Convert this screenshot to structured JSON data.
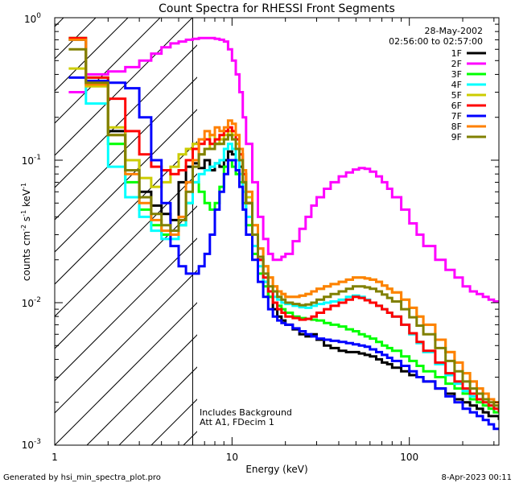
{
  "chart_data": {
    "type": "line",
    "title": "Count Spectra for RHESSI Front Segments",
    "xlabel": "Energy (keV)",
    "ylabel": "counts cm-2 s-1 keV-1",
    "ylabel_parts": {
      "base": "counts cm",
      "exp1": "-2",
      "mid": " s",
      "exp2": "-1",
      "mid2": " keV",
      "exp3": "-1"
    },
    "xscale": "log",
    "yscale": "log",
    "xlim": [
      1,
      320
    ],
    "ylim": [
      0.001,
      1
    ],
    "x_tick_labels": [
      "1",
      "10",
      "100"
    ],
    "y_tick_labels": [
      {
        "base": "10",
        "exp": "0",
        "value": 1
      },
      {
        "base": "10",
        "exp": "-1",
        "value": 0.1
      },
      {
        "base": "10",
        "exp": "-2",
        "value": 0.01
      },
      {
        "base": "10",
        "exp": "-3",
        "value": 0.001
      }
    ],
    "date": "28-May-2002",
    "time_range": "02:56:00 to 02:57:00",
    "hatched_region_kev": [
      1,
      6
    ],
    "annotations": [
      "Includes Background",
      "Att A1, FDecim 1"
    ],
    "legend_position": "top-right",
    "series": [
      {
        "name": "1F",
        "color": "#000000",
        "x": [
          1.2,
          1.5,
          2,
          2.5,
          3,
          3.5,
          4,
          4.5,
          5,
          5.5,
          6,
          6.5,
          7,
          7.5,
          8,
          8.5,
          9,
          9.5,
          10,
          10.5,
          11,
          11.5,
          12,
          13,
          14,
          15,
          16,
          17,
          18,
          19,
          20,
          22,
          24,
          26,
          28,
          30,
          33,
          36,
          40,
          44,
          48,
          52,
          56,
          60,
          65,
          70,
          75,
          80,
          90,
          100,
          110,
          120,
          140,
          160,
          180,
          200,
          220,
          240,
          260,
          280,
          300,
          320
        ],
        "y": [
          0.7,
          0.36,
          0.16,
          0.1,
          0.06,
          0.048,
          0.042,
          0.038,
          0.07,
          0.09,
          0.095,
          0.088,
          0.1,
          0.085,
          0.095,
          0.09,
          0.1,
          0.115,
          0.11,
          0.1,
          0.09,
          0.07,
          0.05,
          0.03,
          0.02,
          0.014,
          0.011,
          0.009,
          0.008,
          0.0075,
          0.007,
          0.0065,
          0.006,
          0.0058,
          0.006,
          0.0055,
          0.005,
          0.0048,
          0.0046,
          0.0045,
          0.0045,
          0.0044,
          0.0043,
          0.0042,
          0.004,
          0.0038,
          0.0037,
          0.0035,
          0.0033,
          0.0031,
          0.003,
          0.0028,
          0.0025,
          0.0023,
          0.0021,
          0.002,
          0.0019,
          0.0018,
          0.0017,
          0.0016,
          0.0016,
          0.0015
        ]
      },
      {
        "name": "2F",
        "color": "#ff00ff",
        "x": [
          1.2,
          1.5,
          2,
          2.5,
          3,
          3.5,
          4,
          4.5,
          5,
          5.5,
          6,
          6.5,
          7,
          7.5,
          8,
          8.5,
          9,
          9.5,
          10,
          10.5,
          11,
          11.5,
          12,
          13,
          14,
          15,
          16,
          17,
          18,
          19,
          20,
          22,
          24,
          26,
          28,
          30,
          33,
          36,
          40,
          44,
          48,
          52,
          56,
          60,
          65,
          70,
          75,
          80,
          90,
          100,
          110,
          120,
          140,
          160,
          180,
          200,
          220,
          240,
          260,
          280,
          300,
          320
        ],
        "y": [
          0.3,
          0.4,
          0.42,
          0.45,
          0.5,
          0.56,
          0.62,
          0.66,
          0.68,
          0.7,
          0.71,
          0.72,
          0.72,
          0.72,
          0.71,
          0.7,
          0.68,
          0.6,
          0.5,
          0.4,
          0.3,
          0.2,
          0.13,
          0.07,
          0.04,
          0.028,
          0.022,
          0.02,
          0.02,
          0.021,
          0.022,
          0.027,
          0.033,
          0.04,
          0.048,
          0.055,
          0.063,
          0.07,
          0.077,
          0.082,
          0.086,
          0.088,
          0.087,
          0.083,
          0.077,
          0.07,
          0.063,
          0.055,
          0.045,
          0.036,
          0.03,
          0.025,
          0.02,
          0.017,
          0.015,
          0.013,
          0.012,
          0.0115,
          0.011,
          0.0105,
          0.0102,
          0.01
        ]
      },
      {
        "name": "3F",
        "color": "#00ff00",
        "x": [
          1.2,
          1.5,
          2,
          2.5,
          3,
          3.5,
          4,
          4.5,
          5,
          5.5,
          6,
          6.5,
          7,
          7.5,
          8,
          8.5,
          9,
          9.5,
          10,
          10.5,
          11,
          11.5,
          12,
          13,
          14,
          15,
          16,
          17,
          18,
          19,
          20,
          22,
          24,
          26,
          28,
          30,
          33,
          36,
          40,
          44,
          48,
          52,
          56,
          60,
          65,
          70,
          75,
          80,
          90,
          100,
          110,
          120,
          140,
          160,
          180,
          200,
          220,
          240,
          260,
          280,
          300,
          320
        ],
        "y": [
          0.72,
          0.38,
          0.13,
          0.07,
          0.045,
          0.035,
          0.03,
          0.03,
          0.035,
          0.05,
          0.07,
          0.06,
          0.05,
          0.045,
          0.05,
          0.065,
          0.09,
          0.1,
          0.09,
          0.08,
          0.07,
          0.05,
          0.035,
          0.022,
          0.016,
          0.013,
          0.011,
          0.01,
          0.0095,
          0.009,
          0.0085,
          0.008,
          0.0078,
          0.0077,
          0.0076,
          0.0075,
          0.0072,
          0.007,
          0.0068,
          0.0065,
          0.0063,
          0.006,
          0.0058,
          0.0056,
          0.0053,
          0.005,
          0.0048,
          0.0046,
          0.0042,
          0.0039,
          0.0036,
          0.0033,
          0.003,
          0.0027,
          0.0025,
          0.0023,
          0.0021,
          0.002,
          0.0019,
          0.0018,
          0.0017,
          0.0017
        ]
      },
      {
        "name": "4F",
        "color": "#00ffff",
        "x": [
          1.2,
          1.5,
          2,
          2.5,
          3,
          3.5,
          4,
          4.5,
          5,
          5.5,
          6,
          6.5,
          7,
          7.5,
          8,
          8.5,
          9,
          9.5,
          10,
          10.5,
          11,
          11.5,
          12,
          13,
          14,
          15,
          16,
          17,
          18,
          19,
          20,
          22,
          24,
          26,
          28,
          30,
          33,
          36,
          40,
          44,
          48,
          52,
          56,
          60,
          65,
          70,
          75,
          80,
          90,
          100,
          110,
          120,
          140,
          160,
          180,
          200,
          220,
          240,
          260,
          280,
          300,
          320
        ],
        "y": [
          0.7,
          0.25,
          0.09,
          0.055,
          0.04,
          0.032,
          0.028,
          0.028,
          0.035,
          0.05,
          0.07,
          0.08,
          0.085,
          0.09,
          0.095,
          0.1,
          0.12,
          0.13,
          0.12,
          0.1,
          0.08,
          0.06,
          0.04,
          0.025,
          0.018,
          0.014,
          0.012,
          0.011,
          0.0105,
          0.01,
          0.0098,
          0.0095,
          0.0093,
          0.0092,
          0.0095,
          0.0098,
          0.01,
          0.0102,
          0.0105,
          0.011,
          0.0112,
          0.011,
          0.0105,
          0.01,
          0.0095,
          0.009,
          0.0085,
          0.008,
          0.007,
          0.006,
          0.0052,
          0.0045,
          0.0037,
          0.0031,
          0.0027,
          0.0024,
          0.0022,
          0.0021,
          0.002,
          0.0019,
          0.0018,
          0.0017
        ]
      },
      {
        "name": "5F",
        "color": "#cccc00",
        "x": [
          1.2,
          1.5,
          2,
          2.5,
          3,
          3.5,
          4,
          4.5,
          5,
          5.5,
          6,
          6.5,
          7,
          7.5,
          8,
          8.5,
          9,
          9.5,
          10,
          10.5,
          11,
          11.5,
          12,
          13,
          14,
          15,
          16,
          17,
          18,
          19,
          20,
          22,
          24,
          26,
          28,
          30,
          33,
          36,
          40,
          44,
          48,
          52,
          56,
          60,
          65,
          70,
          75,
          80,
          90,
          100,
          110,
          120,
          140,
          160,
          180,
          200,
          220,
          240,
          260,
          280,
          300,
          320
        ],
        "y": [
          0.44,
          0.33,
          0.17,
          0.1,
          0.075,
          0.065,
          0.07,
          0.09,
          0.11,
          0.12,
          0.13,
          0.11,
          0.12,
          0.15,
          0.13,
          0.14,
          0.15,
          0.16,
          0.15,
          0.13,
          0.11,
          0.08,
          0.055,
          0.035,
          0.024,
          0.018,
          0.015,
          0.013,
          0.012,
          0.0115,
          0.011,
          0.011,
          0.0112,
          0.0115,
          0.012,
          0.0125,
          0.013,
          0.0135,
          0.014,
          0.0145,
          0.015,
          0.015,
          0.0148,
          0.0145,
          0.014,
          0.0132,
          0.0125,
          0.0118,
          0.0105,
          0.0092,
          0.008,
          0.007,
          0.0055,
          0.0045,
          0.0038,
          0.0032,
          0.0028,
          0.0025,
          0.0023,
          0.0021,
          0.002,
          0.0019
        ]
      },
      {
        "name": "6F",
        "color": "#ff0000",
        "x": [
          1.2,
          1.5,
          2,
          2.5,
          3,
          3.5,
          4,
          4.5,
          5,
          5.5,
          6,
          6.5,
          7,
          7.5,
          8,
          8.5,
          9,
          9.5,
          10,
          10.5,
          11,
          11.5,
          12,
          13,
          14,
          15,
          16,
          17,
          18,
          19,
          20,
          22,
          24,
          26,
          28,
          30,
          33,
          36,
          40,
          44,
          48,
          52,
          56,
          60,
          65,
          70,
          75,
          80,
          90,
          100,
          110,
          120,
          140,
          160,
          180,
          200,
          220,
          240,
          260,
          280,
          300,
          320
        ],
        "y": [
          0.72,
          0.38,
          0.27,
          0.16,
          0.11,
          0.09,
          0.085,
          0.08,
          0.085,
          0.1,
          0.12,
          0.13,
          0.14,
          0.13,
          0.14,
          0.15,
          0.16,
          0.17,
          0.16,
          0.14,
          0.11,
          0.08,
          0.05,
          0.03,
          0.02,
          0.015,
          0.012,
          0.01,
          0.009,
          0.0085,
          0.008,
          0.0078,
          0.0076,
          0.0077,
          0.008,
          0.0085,
          0.009,
          0.0095,
          0.01,
          0.0105,
          0.011,
          0.0108,
          0.0104,
          0.01,
          0.0095,
          0.009,
          0.0085,
          0.008,
          0.007,
          0.0061,
          0.0053,
          0.0046,
          0.0038,
          0.0032,
          0.0028,
          0.0025,
          0.0023,
          0.0021,
          0.002,
          0.0019,
          0.0018,
          0.0017
        ]
      },
      {
        "name": "7F",
        "color": "#0000ff",
        "x": [
          1.2,
          1.5,
          2,
          2.5,
          3,
          3.5,
          4,
          4.5,
          5,
          5.5,
          6,
          6.5,
          7,
          7.5,
          8,
          8.5,
          9,
          9.5,
          10,
          10.5,
          11,
          11.5,
          12,
          13,
          14,
          15,
          16,
          17,
          18,
          19,
          20,
          22,
          24,
          26,
          28,
          30,
          33,
          36,
          40,
          44,
          48,
          52,
          56,
          60,
          65,
          70,
          75,
          80,
          90,
          100,
          110,
          120,
          140,
          160,
          180,
          200,
          220,
          240,
          260,
          280,
          300,
          320
        ],
        "y": [
          0.38,
          0.36,
          0.35,
          0.32,
          0.2,
          0.1,
          0.05,
          0.025,
          0.018,
          0.016,
          0.016,
          0.018,
          0.022,
          0.03,
          0.045,
          0.06,
          0.08,
          0.1,
          0.1,
          0.085,
          0.065,
          0.045,
          0.03,
          0.02,
          0.014,
          0.011,
          0.009,
          0.008,
          0.0075,
          0.0072,
          0.007,
          0.0066,
          0.0063,
          0.006,
          0.0058,
          0.0056,
          0.0055,
          0.0054,
          0.0053,
          0.0052,
          0.0051,
          0.005,
          0.0049,
          0.0047,
          0.0045,
          0.0043,
          0.0041,
          0.0039,
          0.0036,
          0.0033,
          0.003,
          0.0028,
          0.0025,
          0.0022,
          0.002,
          0.0018,
          0.0017,
          0.0016,
          0.0015,
          0.0014,
          0.0013,
          0.0013
        ]
      },
      {
        "name": "8F",
        "color": "#ff8000",
        "x": [
          1.2,
          1.5,
          2,
          2.5,
          3,
          3.5,
          4,
          4.5,
          5,
          5.5,
          6,
          6.5,
          7,
          7.5,
          8,
          8.5,
          9,
          9.5,
          10,
          10.5,
          11,
          11.5,
          12,
          13,
          14,
          15,
          16,
          17,
          18,
          19,
          20,
          22,
          24,
          26,
          28,
          30,
          33,
          36,
          40,
          44,
          48,
          52,
          56,
          60,
          65,
          70,
          75,
          80,
          90,
          100,
          110,
          120,
          140,
          160,
          180,
          200,
          220,
          240,
          260,
          280,
          300,
          320
        ],
        "y": [
          0.7,
          0.34,
          0.15,
          0.08,
          0.05,
          0.038,
          0.032,
          0.03,
          0.04,
          0.07,
          0.1,
          0.14,
          0.16,
          0.15,
          0.17,
          0.16,
          0.17,
          0.19,
          0.18,
          0.15,
          0.12,
          0.085,
          0.06,
          0.035,
          0.024,
          0.018,
          0.015,
          0.013,
          0.012,
          0.0115,
          0.011,
          0.011,
          0.0112,
          0.0115,
          0.012,
          0.0125,
          0.013,
          0.0135,
          0.014,
          0.0145,
          0.015,
          0.015,
          0.0148,
          0.0145,
          0.014,
          0.0132,
          0.0125,
          0.0118,
          0.0105,
          0.0092,
          0.008,
          0.007,
          0.0055,
          0.0045,
          0.0038,
          0.0032,
          0.0028,
          0.0025,
          0.0023,
          0.0021,
          0.002,
          0.0019
        ]
      },
      {
        "name": "9F",
        "color": "#808000",
        "x": [
          1.2,
          1.5,
          2,
          2.5,
          3,
          3.5,
          4,
          4.5,
          5,
          5.5,
          6,
          6.5,
          7,
          7.5,
          8,
          8.5,
          9,
          9.5,
          10,
          10.5,
          11,
          11.5,
          12,
          13,
          14,
          15,
          16,
          17,
          18,
          19,
          20,
          22,
          24,
          26,
          28,
          30,
          33,
          36,
          40,
          44,
          48,
          52,
          56,
          60,
          65,
          70,
          75,
          80,
          90,
          100,
          110,
          120,
          140,
          160,
          180,
          200,
          220,
          240,
          260,
          280,
          300,
          320
        ],
        "y": [
          0.6,
          0.35,
          0.15,
          0.085,
          0.055,
          0.042,
          0.035,
          0.032,
          0.038,
          0.06,
          0.09,
          0.11,
          0.12,
          0.12,
          0.13,
          0.13,
          0.14,
          0.15,
          0.14,
          0.12,
          0.1,
          0.07,
          0.05,
          0.03,
          0.021,
          0.016,
          0.013,
          0.012,
          0.011,
          0.0105,
          0.01,
          0.0098,
          0.0096,
          0.0097,
          0.01,
          0.0105,
          0.011,
          0.0115,
          0.012,
          0.0125,
          0.013,
          0.013,
          0.0128,
          0.0125,
          0.012,
          0.0114,
          0.0108,
          0.0102,
          0.009,
          0.0079,
          0.0069,
          0.006,
          0.0048,
          0.0039,
          0.0033,
          0.0028,
          0.0025,
          0.0023,
          0.0021,
          0.002,
          0.0019,
          0.0018
        ]
      }
    ]
  },
  "footer": {
    "generated_by": "Generated by hsi_min_spectra_plot.pro",
    "timestamp": "8-Apr-2023 00:11"
  }
}
